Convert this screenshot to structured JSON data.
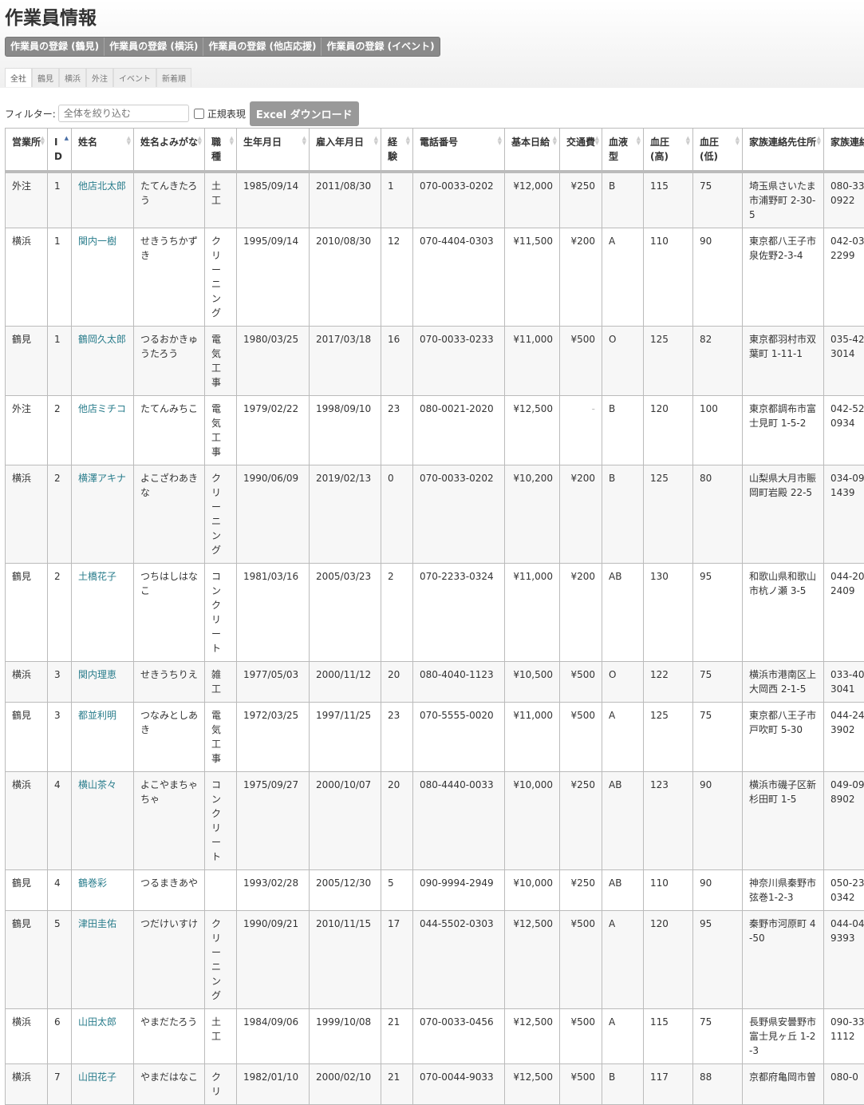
{
  "page_title": "作業員情報",
  "register_buttons": [
    "作業員の登録 (鶴見)",
    "作業員の登録 (横浜)",
    "作業員の登録 (他店応援)",
    "作業員の登録 (イベント)"
  ],
  "tabs": [
    "全社",
    "鶴見",
    "横浜",
    "外注",
    "イベント",
    "新着順"
  ],
  "active_tab": "全社",
  "filter": {
    "label": "フィルター:",
    "placeholder": "全体を絞り込む",
    "regex_label": "正規表現",
    "regex_checked": false,
    "excel_button": "Excel ダウンロード"
  },
  "table": {
    "columns": [
      "営業所",
      "ID",
      "姓名",
      "姓名よみがな",
      "職種",
      "生年月日",
      "雇入年月日",
      "経験",
      "電話番号",
      "基本日給",
      "交通費",
      "血液型",
      "血圧(高)",
      "血圧(低)",
      "家族連絡先住所",
      "家族連絡"
    ],
    "rows": [
      [
        "外注",
        "1",
        "他店北太郎",
        "たてんきたろう",
        "土工",
        "1985/09/14",
        "2011/08/30",
        "1",
        "070-0033-0202",
        "¥12,000",
        "¥250",
        "B",
        "115",
        "75",
        "埼玉県さいたま市浦野町 2-30-5",
        "080-33\n0922"
      ],
      [
        "横浜",
        "1",
        "関内一樹",
        "せきうちかずき",
        "クリーニング",
        "1995/09/14",
        "2010/08/30",
        "12",
        "070-4404-0303",
        "¥11,500",
        "¥200",
        "A",
        "110",
        "90",
        "東京都八王子市泉佐野2-3-4",
        "042-03\n2299"
      ],
      [
        "鶴見",
        "1",
        "鶴岡久太郎",
        "つるおかきゅうたろう",
        "電気工事",
        "1980/03/25",
        "2017/03/18",
        "16",
        "070-0033-0233",
        "¥11,000",
        "¥500",
        "O",
        "125",
        "82",
        "東京都羽村市双葉町 1-11-1",
        "035-42\n3014"
      ],
      [
        "外注",
        "2",
        "他店ミチコ",
        "たてんみちこ",
        "電気工事",
        "1979/02/22",
        "1998/09/10",
        "23",
        "080-0021-2020",
        "¥12,500",
        "-",
        "B",
        "120",
        "100",
        "東京都調布市富士見町 1-5-2",
        "042-52\n0934"
      ],
      [
        "横浜",
        "2",
        "横澤アキナ",
        "よこざわあきな",
        "クリーニング",
        "1990/06/09",
        "2019/02/13",
        "0",
        "070-0033-0202",
        "¥10,200",
        "¥200",
        "B",
        "125",
        "80",
        "山梨県大月市賑岡町岩殿 22-5",
        "034-09\n1439"
      ],
      [
        "鶴見",
        "2",
        "土橋花子",
        "つちはしはなこ",
        "コンクリート",
        "1981/03/16",
        "2005/03/23",
        "2",
        "070-2233-0324",
        "¥11,000",
        "¥200",
        "AB",
        "130",
        "95",
        "和歌山県和歌山市杭ノ瀬 3-5",
        "044-20\n2409"
      ],
      [
        "横浜",
        "3",
        "関内理恵",
        "せきうちりえ",
        "雑工",
        "1977/05/03",
        "2000/11/12",
        "20",
        "080-4040-1123",
        "¥10,500",
        "¥500",
        "O",
        "122",
        "75",
        "横浜市港南区上大岡西 2-1-5",
        "033-40\n3041"
      ],
      [
        "鶴見",
        "3",
        "都並利明",
        "つなみとしあき",
        "電気工事",
        "1972/03/25",
        "1997/11/25",
        "23",
        "070-5555-0020",
        "¥11,000",
        "¥500",
        "A",
        "125",
        "75",
        "東京都八王子市戸吹町 5-30",
        "044-24\n3902"
      ],
      [
        "横浜",
        "4",
        "横山茶々",
        "よこやまちゃちゃ",
        "コンクリート",
        "1975/09/27",
        "2000/10/07",
        "20",
        "080-4440-0033",
        "¥10,000",
        "¥250",
        "AB",
        "123",
        "90",
        "横浜市磯子区新杉田町 1-5",
        "049-09\n8902"
      ],
      [
        "鶴見",
        "4",
        "鶴巻彩",
        "つるまきあや",
        "",
        "1993/02/28",
        "2005/12/30",
        "5",
        "090-9994-2949",
        "¥10,000",
        "¥250",
        "AB",
        "110",
        "90",
        "神奈川県秦野市弦巻1-2-3",
        "050-23\n0342"
      ],
      [
        "鶴見",
        "5",
        "津田圭佑",
        "つだけいすけ",
        "クリーニング",
        "1990/09/21",
        "2010/11/15",
        "17",
        "044-5502-0303",
        "¥12,500",
        "¥500",
        "A",
        "120",
        "95",
        "秦野市河原町 4-50",
        "044-04\n9393"
      ],
      [
        "横浜",
        "6",
        "山田太郎",
        "やまだたろう",
        "土工",
        "1984/09/06",
        "1999/10/08",
        "21",
        "070-0033-0456",
        "¥12,500",
        "¥500",
        "A",
        "115",
        "75",
        "長野県安曇野市富士見ヶ丘 1-2-3",
        "090-33\n1112"
      ],
      [
        "横浜",
        "7",
        "山田花子",
        "やまだはなこ",
        "クリ",
        "1982/01/10",
        "2000/02/10",
        "21",
        "070-0044-9033",
        "¥12,500",
        "¥500",
        "B",
        "117",
        "88",
        "京都府亀岡市曽",
        "080-0"
      ]
    ]
  }
}
